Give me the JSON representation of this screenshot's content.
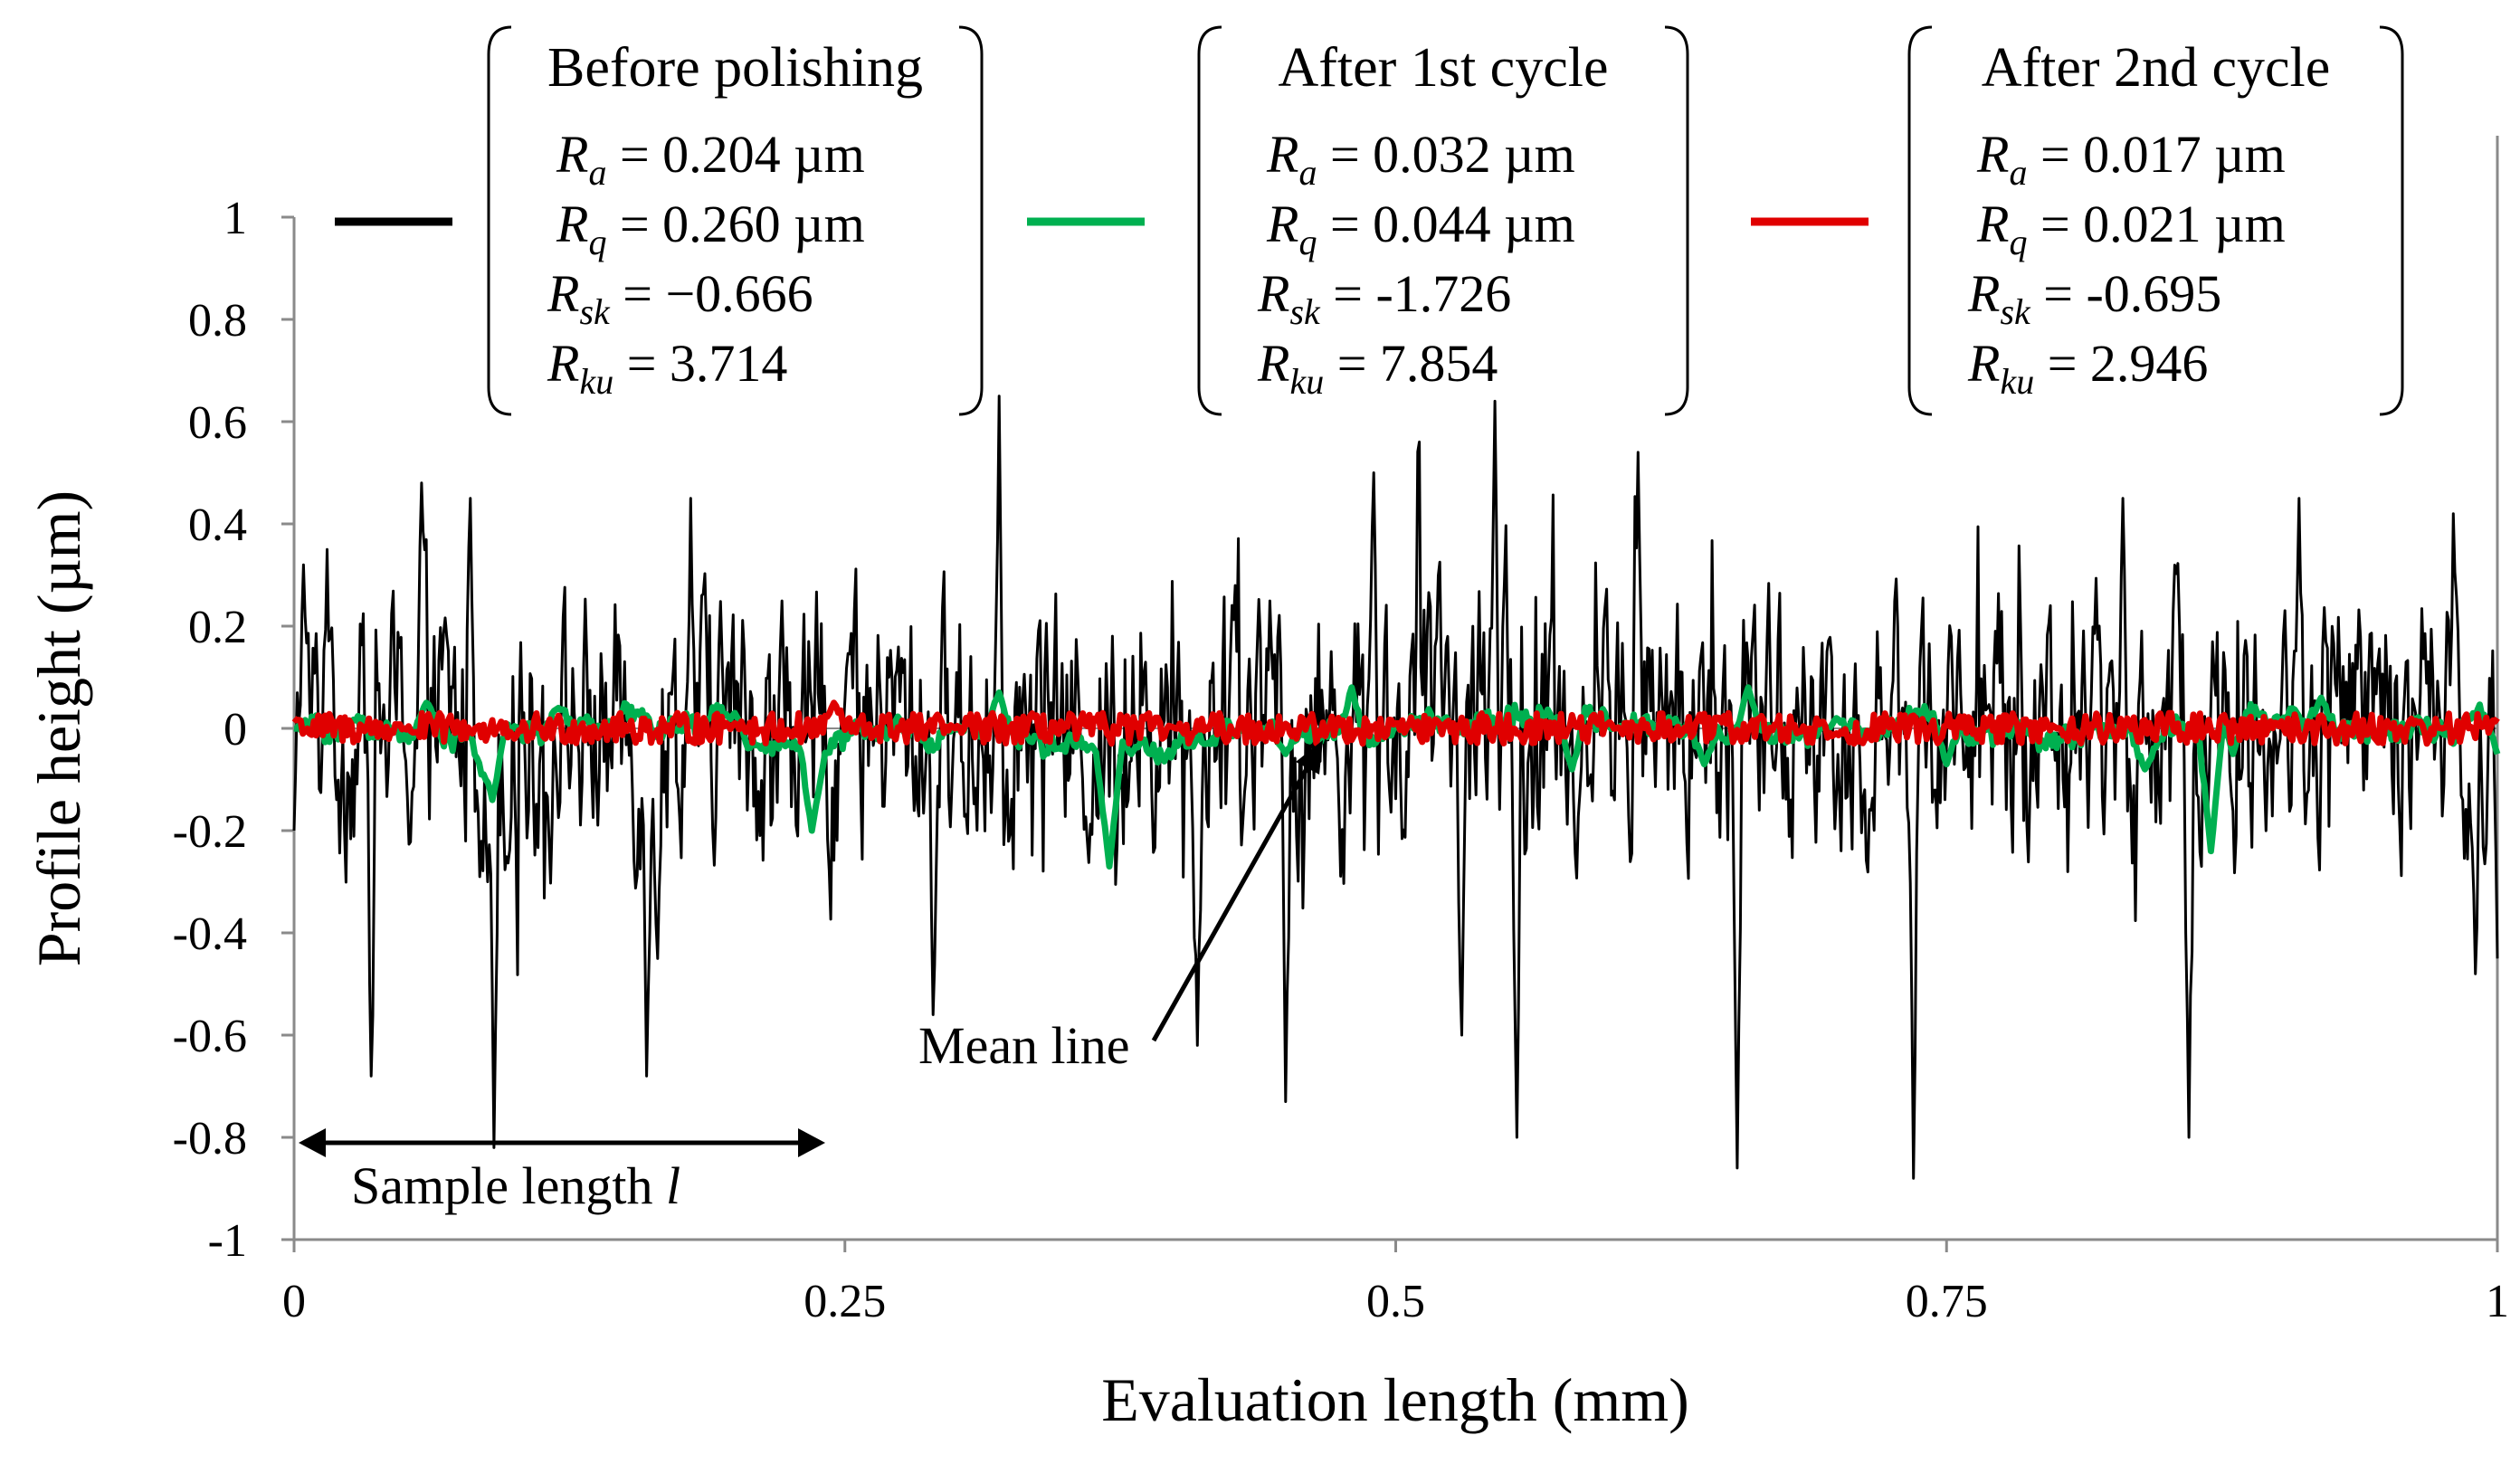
{
  "chart_data": {
    "type": "line",
    "xlabel": "Evaluation length (mm)",
    "ylabel": "Profile height (µm)",
    "xlim": [
      0,
      1
    ],
    "ylim": [
      -1,
      1
    ],
    "x_ticks": [
      "0",
      "0.25",
      "0.5",
      "0.75",
      "1"
    ],
    "y_ticks": [
      "1",
      "0.8",
      "0.6",
      "0.4",
      "0.2",
      "0",
      "-0.2",
      "-0.4",
      "-0.6",
      "-0.8",
      "-1"
    ],
    "grid": false,
    "series": [
      {
        "name": "Before polishing",
        "color": "#000000",
        "stats": {
          "Ra": "= 0.204 µm",
          "Rq": "= 0.260 µm",
          "Rsk": "= −0.666",
          "Rku": "= 3.714"
        },
        "key_points": [
          [
            0.0,
            -0.2
          ],
          [
            0.004,
            0.32
          ],
          [
            0.015,
            0.35
          ],
          [
            0.035,
            -0.68
          ],
          [
            0.058,
            0.48
          ],
          [
            0.08,
            0.45
          ],
          [
            0.088,
            -0.3
          ],
          [
            0.091,
            -0.82
          ],
          [
            0.16,
            -0.68
          ],
          [
            0.165,
            -0.45
          ],
          [
            0.18,
            0.45
          ],
          [
            0.29,
            -0.56
          ],
          [
            0.32,
            0.65
          ],
          [
            0.41,
            -0.62
          ],
          [
            0.45,
            -0.73
          ],
          [
            0.49,
            0.5
          ],
          [
            0.53,
            -0.6
          ],
          [
            0.545,
            0.64
          ],
          [
            0.555,
            -0.8
          ],
          [
            0.61,
            0.54
          ],
          [
            0.655,
            -0.86
          ],
          [
            0.735,
            -0.88
          ],
          [
            0.83,
            0.45
          ],
          [
            0.86,
            -0.8
          ],
          [
            0.91,
            0.45
          ],
          [
            0.98,
            0.42
          ],
          [
            0.99,
            -0.48
          ],
          [
            1.0,
            -0.45
          ]
        ]
      },
      {
        "name": "After 1st cycle",
        "color": "#00B050",
        "stats": {
          "Ra": "= 0.032 µm",
          "Rq": "= 0.044 µm",
          "Rsk": "= -1.726",
          "Rku": "= 7.854"
        },
        "key_points": [
          [
            0.0,
            0.0
          ],
          [
            0.06,
            0.05
          ],
          [
            0.085,
            -0.08
          ],
          [
            0.09,
            -0.14
          ],
          [
            0.12,
            0.04
          ],
          [
            0.2,
            0.03
          ],
          [
            0.24,
            -0.05
          ],
          [
            0.235,
            -0.2
          ],
          [
            0.3,
            0.0
          ],
          [
            0.32,
            0.07
          ],
          [
            0.365,
            -0.05
          ],
          [
            0.37,
            -0.27
          ],
          [
            0.38,
            -0.05
          ],
          [
            0.45,
            -0.05
          ],
          [
            0.48,
            0.08
          ],
          [
            0.58,
            -0.08
          ],
          [
            0.6,
            0.0
          ],
          [
            0.64,
            -0.07
          ],
          [
            0.66,
            0.08
          ],
          [
            0.7,
            0.02
          ],
          [
            0.75,
            -0.07
          ],
          [
            0.84,
            -0.08
          ],
          [
            0.87,
            -0.24
          ],
          [
            0.88,
            -0.05
          ],
          [
            0.92,
            0.06
          ],
          [
            0.98,
            -0.03
          ],
          [
            1.0,
            -0.05
          ]
        ]
      },
      {
        "name": "After 2nd cycle",
        "color": "#E00000",
        "stats": {
          "Ra": "= 0.017 µm",
          "Rq": "= 0.021 µm",
          "Rsk": "= -0.695",
          "Rku": "= 2.946"
        },
        "key_points": [
          [
            0.0,
            0.02
          ],
          [
            0.05,
            0.0
          ],
          [
            0.1,
            -0.02
          ],
          [
            0.2,
            0.01
          ],
          [
            0.245,
            0.05
          ],
          [
            0.3,
            0.0
          ],
          [
            0.4,
            0.0
          ],
          [
            0.5,
            0.01
          ],
          [
            0.6,
            0.0
          ],
          [
            0.7,
            -0.01
          ],
          [
            0.8,
            0.0
          ],
          [
            0.9,
            0.01
          ],
          [
            1.0,
            0.02
          ]
        ]
      }
    ],
    "annotations": {
      "mean_line": "Mean line",
      "sample_length": "Sample length",
      "sample_length_symbol": "l",
      "sample_length_range": [
        0,
        0.24
      ]
    }
  }
}
